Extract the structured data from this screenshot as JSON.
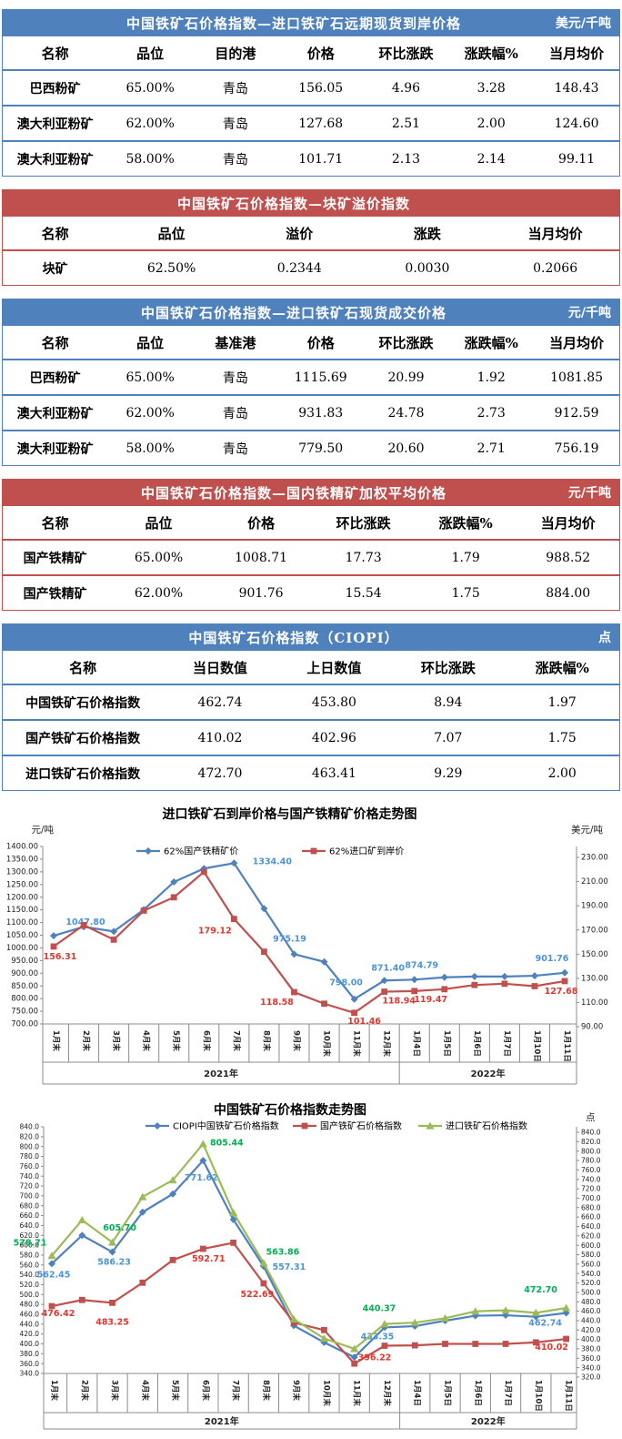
{
  "report": {
    "language": "zh-CN",
    "kind": "CIOPI daily iron ore price report"
  },
  "colors": {
    "blue_theme": "#4F81BD",
    "red_theme": "#C0504D",
    "series_blue": "#4F81BD",
    "series_red": "#C0504D",
    "series_green": "#9BBB59",
    "label_blue": "#4C93D9",
    "label_red": "#E2372E",
    "label_green": "#00B050",
    "axis_text": "#222222",
    "axis_line": "#8C8C8C",
    "title_text": "#000000"
  },
  "tables": [
    {
      "theme": "blue",
      "title": "中国铁矿石价格指数—进口铁矿石远期现货到岸价格",
      "unit": "美元/千吨",
      "columns": [
        "名称",
        "品位",
        "目的港",
        "价格",
        "环比涨跌",
        "涨跌幅%",
        "当月均价"
      ],
      "rows": [
        [
          "巴西粉矿",
          "65.00%",
          "青岛",
          "156.05",
          "4.96",
          "3.28",
          "148.43"
        ],
        [
          "澳大利亚粉矿",
          "62.00%",
          "青岛",
          "127.68",
          "2.51",
          "2.00",
          "124.60"
        ],
        [
          "澳大利亚粉矿",
          "58.00%",
          "青岛",
          "101.71",
          "2.13",
          "2.14",
          "99.11"
        ]
      ]
    },
    {
      "theme": "red",
      "title": "中国铁矿石价格指数—块矿溢价指数",
      "unit": "",
      "columns": [
        "名称",
        "品位",
        "溢价",
        "涨跌",
        "当月均价"
      ],
      "rows": [
        [
          "块矿",
          "62.50%",
          "0.2344",
          "0.0030",
          "0.2066"
        ]
      ]
    },
    {
      "theme": "blue",
      "title": "中国铁矿石价格指数—进口铁矿石现货成交价格",
      "unit": "元/千吨",
      "columns": [
        "名称",
        "品位",
        "基准港",
        "价格",
        "环比涨跌",
        "涨跌幅%",
        "当月均价"
      ],
      "rows": [
        [
          "巴西粉矿",
          "65.00%",
          "青岛",
          "1115.69",
          "20.99",
          "1.92",
          "1081.85"
        ],
        [
          "澳大利亚粉矿",
          "62.00%",
          "青岛",
          "931.83",
          "24.78",
          "2.73",
          "912.59"
        ],
        [
          "澳大利亚粉矿",
          "58.00%",
          "青岛",
          "779.50",
          "20.60",
          "2.71",
          "756.19"
        ]
      ]
    },
    {
      "theme": "red",
      "title": "中国铁矿石价格指数—国内铁精矿加权平均价格",
      "unit": "元/千吨",
      "columns": [
        "名称",
        "品位",
        "价格",
        "环比涨跌",
        "涨跌幅%",
        "当月均价"
      ],
      "rows": [
        [
          "国产铁精矿",
          "65.00%",
          "1008.71",
          "17.73",
          "1.79",
          "988.52"
        ],
        [
          "国产铁精矿",
          "62.00%",
          "901.76",
          "15.54",
          "1.75",
          "884.00"
        ]
      ]
    },
    {
      "theme": "blue",
      "title": "中国铁矿石价格指数（CIOPI）",
      "unit": "点",
      "columns": [
        "名称",
        "当日数值",
        "上日数值",
        "环比涨跌",
        "涨跌幅%"
      ],
      "rows": [
        [
          "中国铁矿石价格指数",
          "462.74",
          "453.80",
          "8.94",
          "1.97"
        ],
        [
          "国产铁矿石价格指数",
          "410.02",
          "402.96",
          "7.07",
          "1.75"
        ],
        [
          "进口铁矿石价格指数",
          "472.70",
          "463.41",
          "9.29",
          "2.00"
        ]
      ]
    }
  ],
  "chart_data": [
    {
      "type": "line",
      "title": "进口铁矿石到岸价格与国产铁精矿价格走势图",
      "left_axis": {
        "unit": "元/吨",
        "min": 700,
        "max": 1400,
        "step": 50,
        "decimals": 2
      },
      "right_axis": {
        "unit": "美元/吨",
        "min": 90,
        "max": 230,
        "step": 20,
        "decimals": 2
      },
      "grid": false,
      "legend_position": "top",
      "categories": [
        "1月末",
        "2月末",
        "3月末",
        "4月末",
        "5月末",
        "6月末",
        "7月末",
        "8月末",
        "9月末",
        "10月末",
        "11月末",
        "12月末",
        "1月4日",
        "1月5日",
        "1月6日",
        "1月7日",
        "1月10日",
        "1月11日"
      ],
      "year_groups": [
        {
          "label": "2021年",
          "span": 12
        },
        {
          "label": "2022年",
          "span": 6
        }
      ],
      "series": [
        {
          "name": "62%国产铁精矿价",
          "axis": "left",
          "marker": "diamond",
          "color_key": "series_blue",
          "label_color_key": "label_blue",
          "values": [
            1047.8,
            1083,
            1065,
            1151,
            1260,
            1313,
            1334.4,
            1155,
            975.19,
            945,
            798.0,
            871.4,
            874.79,
            884,
            887,
            887,
            890,
            901.76
          ],
          "labels": [
            {
              "i": 0,
              "text": "1047.80",
              "dx": 35,
              "dy": -12
            },
            {
              "i": 6,
              "text": "1334.40",
              "dx": 42,
              "dy": 1
            },
            {
              "i": 8,
              "text": "975.19",
              "dx": -5,
              "dy": -14
            },
            {
              "i": 10,
              "text": "798.00",
              "dx": -9,
              "dy": -15
            },
            {
              "i": 11,
              "text": "871.40",
              "dx": 4,
              "dy": -11
            },
            {
              "i": 12,
              "text": "874.79",
              "dx": 8,
              "dy": -13
            },
            {
              "i": 17,
              "text": "901.76",
              "dx": -14,
              "dy": -13
            }
          ]
        },
        {
          "name": "62%进口矿到岸价",
          "axis": "right",
          "marker": "square",
          "color_key": "series_red",
          "label_color_key": "label_red",
          "values": [
            156.31,
            174,
            162,
            186,
            197,
            218,
            179.12,
            152,
            118.58,
            109,
            101.46,
            118.94,
            119.47,
            121,
            124.5,
            125.5,
            123.5,
            127.68
          ],
          "labels": [
            {
              "i": 0,
              "text": "156.31",
              "dx": 7,
              "dy": 14
            },
            {
              "i": 6,
              "text": "179.12",
              "dx": -21,
              "dy": 16
            },
            {
              "i": 8,
              "text": "118.58",
              "dx": -19,
              "dy": 14
            },
            {
              "i": 10,
              "text": "101.46",
              "dx": 11,
              "dy": 12
            },
            {
              "i": 11,
              "text": "118.94",
              "dx": 16,
              "dy": 13
            },
            {
              "i": 12,
              "text": "119.47",
              "dx": 18,
              "dy": 12
            },
            {
              "i": 17,
              "text": "127.68",
              "dx": -4,
              "dy": 14
            }
          ]
        }
      ]
    },
    {
      "type": "line",
      "title": "中国铁矿石价格指数走势图",
      "left_axis": {
        "unit": "",
        "min": 340,
        "max": 840,
        "step": 20,
        "decimals": 1
      },
      "right_axis": {
        "unit": "点",
        "min": 320,
        "max": 840,
        "step": 20,
        "decimals": 1
      },
      "grid": false,
      "legend_position": "top",
      "categories": [
        "1月末",
        "2月末",
        "3月末",
        "4月末",
        "5月末",
        "6月末",
        "7月末",
        "8月末",
        "9月末",
        "10月末",
        "11月末",
        "12月末",
        "1月4日",
        "1月5日",
        "1月6日",
        "1月7日",
        "1月10日",
        "1月11日"
      ],
      "year_groups": [
        {
          "label": "2021年",
          "span": 12
        },
        {
          "label": "2022年",
          "span": 6
        }
      ],
      "series": [
        {
          "name": "CIOPI中国铁矿石价格指数",
          "axis": "left",
          "marker": "diamond",
          "color_key": "series_blue",
          "label_color_key": "label_blue",
          "values": [
            562.45,
            620,
            586.23,
            667,
            704,
            771.62,
            652,
            557.31,
            437,
            403,
            373,
            433.35,
            436,
            447,
            457,
            458,
            455,
            462.74
          ],
          "labels": [
            {
              "i": 0,
              "text": "562.45",
              "dx": 2,
              "dy": 15
            },
            {
              "i": 2,
              "text": "586.23",
              "dx": 2,
              "dy": 14
            },
            {
              "i": 5,
              "text": "771.62",
              "dx": -2,
              "dy": 22
            },
            {
              "i": 7,
              "text": "557.31",
              "dx": 28,
              "dy": 4
            },
            {
              "i": 11,
              "text": "433.35",
              "dx": -8,
              "dy": 13
            },
            {
              "i": 17,
              "text": "462.74",
              "dx": -23,
              "dy": 14
            }
          ]
        },
        {
          "name": "国产铁矿石价格指数",
          "axis": "left",
          "marker": "square",
          "color_key": "series_red",
          "label_color_key": "label_red",
          "values": [
            476.42,
            489,
            483.25,
            524,
            570,
            592.71,
            605,
            522.69,
            443,
            428,
            360,
            396.22,
            397,
            400,
            400,
            400,
            403,
            410.02
          ],
          "labels": [
            {
              "i": 0,
              "text": "476.42",
              "dx": 7,
              "dy": 11
            },
            {
              "i": 2,
              "text": "483.25",
              "dx": 0,
              "dy": 24
            },
            {
              "i": 5,
              "text": "592.71",
              "dx": 6,
              "dy": 14
            },
            {
              "i": 7,
              "text": "522.69",
              "dx": -7,
              "dy": 15
            },
            {
              "i": 11,
              "text": "396.22",
              "dx": -11,
              "dy": 16
            },
            {
              "i": 17,
              "text": "410.02",
              "dx": -16,
              "dy": 12
            }
          ]
        },
        {
          "name": "进口铁矿石价格指数",
          "axis": "left",
          "marker": "triangle",
          "color_key": "series_green",
          "label_color_key": "label_green",
          "values": [
            578.71,
            651,
            605.7,
            698,
            732,
            805.44,
            666,
            563.86,
            450,
            411,
            390,
            440.37,
            443,
            452,
            466,
            468,
            463,
            472.7
          ],
          "labels": [
            {
              "i": 0,
              "text": "578.71",
              "dx": -24,
              "dy": -11
            },
            {
              "i": 2,
              "text": "605.70",
              "dx": 8,
              "dy": -13
            },
            {
              "i": 5,
              "text": "805.44",
              "dx": 26,
              "dy": 2
            },
            {
              "i": 7,
              "text": "563.86",
              "dx": 21,
              "dy": -9
            },
            {
              "i": 11,
              "text": "440.37",
              "dx": -6,
              "dy": -14
            },
            {
              "i": 17,
              "text": "472.70",
              "dx": -28,
              "dy": -17
            }
          ]
        }
      ]
    }
  ]
}
